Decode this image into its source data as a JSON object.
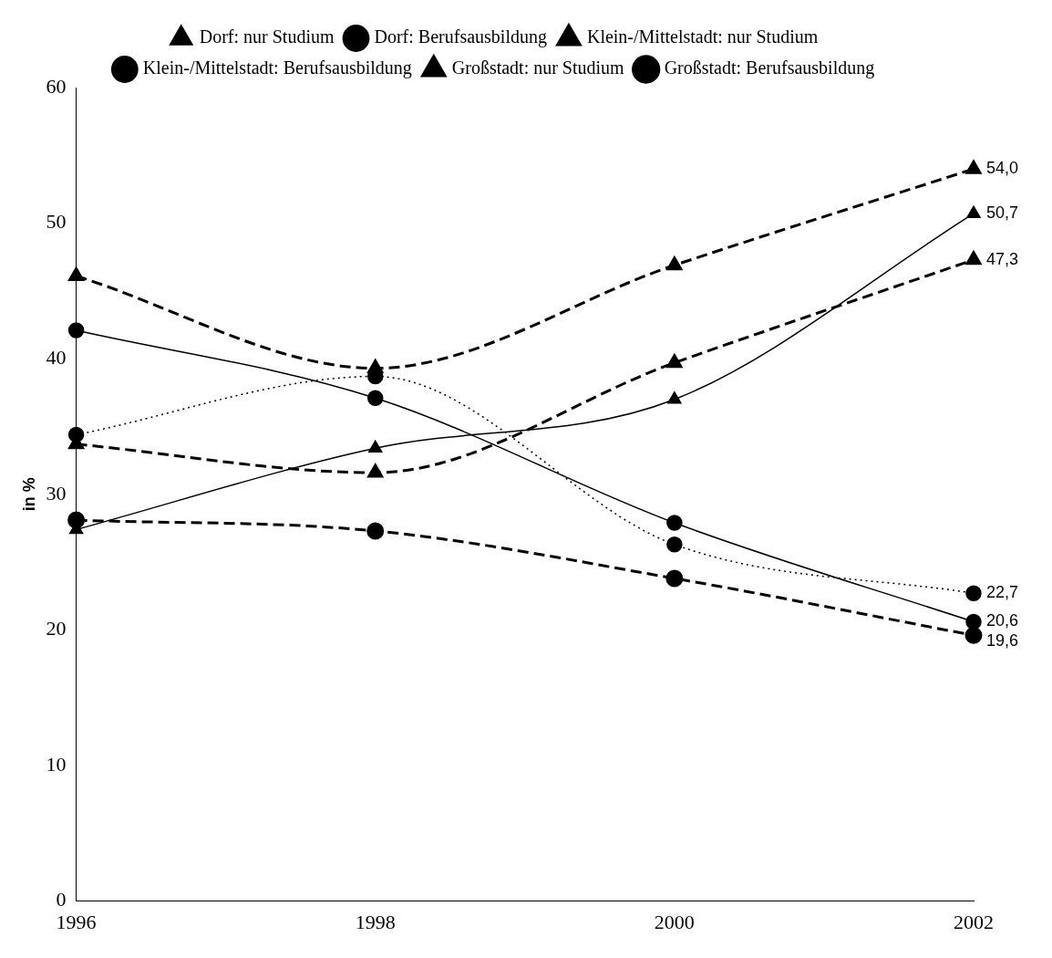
{
  "chart_data": {
    "type": "line",
    "ylabel": "in %",
    "categories": [
      "1996",
      "1998",
      "2000",
      "2002"
    ],
    "ylim": [
      0,
      60
    ],
    "yticks": [
      0,
      10,
      20,
      30,
      40,
      50,
      60
    ],
    "grid": false,
    "legend": "top",
    "series": [
      {
        "name": "Dorf: nur Studium",
        "color": "#000000",
        "marker": "triangle",
        "line_style": "solid",
        "values": [
          27.4,
          33.4,
          37.0,
          50.7
        ],
        "value_labels": [
          null,
          null,
          null,
          "50,7"
        ]
      },
      {
        "name": "Dorf: Berufsausbildung",
        "color": "#000000",
        "marker": "circle",
        "line_style": "solid",
        "values": [
          42.1,
          37.1,
          27.9,
          20.6
        ],
        "value_labels": [
          null,
          null,
          null,
          "20,6"
        ]
      },
      {
        "name": "Klein-/Mittelstadt: nur Studium",
        "color": "#000000",
        "marker": "triangle",
        "line_style": "dashed",
        "values": [
          33.7,
          31.6,
          39.7,
          47.3
        ],
        "value_labels": [
          null,
          null,
          null,
          "47,3"
        ]
      },
      {
        "name": "Klein-/Mittelstadt: Berufsausbildung",
        "color": "#000000",
        "marker": "circle",
        "line_style": "dotted",
        "values": [
          34.4,
          38.7,
          26.3,
          22.7
        ],
        "value_labels": [
          null,
          null,
          null,
          "22,7"
        ]
      },
      {
        "name": "Großstadt: nur Studium",
        "color": "#000000",
        "marker": "triangle",
        "line_style": "dashed",
        "values": [
          46.1,
          39.3,
          46.9,
          54.0
        ],
        "value_labels": [
          null,
          null,
          null,
          "54,0"
        ]
      },
      {
        "name": "Großstadt: Berufsausbildung",
        "color": "#000000",
        "marker": "circle",
        "line_style": "dashed",
        "values": [
          28.1,
          27.3,
          23.8,
          19.6
        ],
        "value_labels": [
          null,
          null,
          null,
          "19,6"
        ]
      }
    ]
  }
}
